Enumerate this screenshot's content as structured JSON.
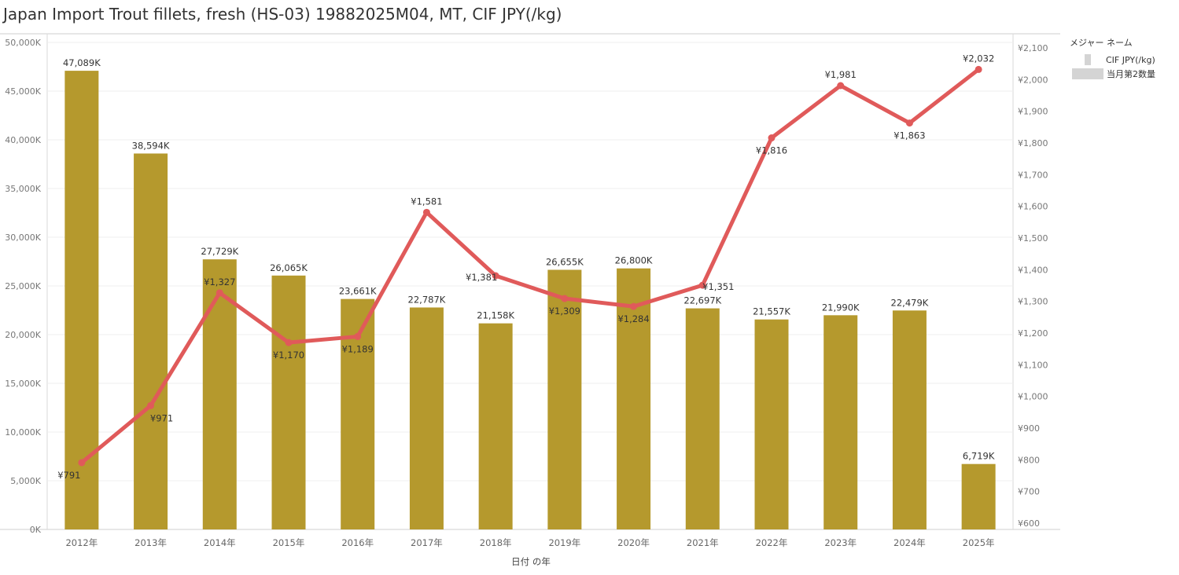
{
  "title": "Japan Import Trout fillets, fresh (HS-03) 19882025M04, MT, CIF JPY(/kg)",
  "legend": {
    "title": "メジャー ネーム",
    "items": [
      {
        "label": "CIF JPY(/kg)",
        "kind": "line"
      },
      {
        "label": "当月第2数量",
        "kind": "bar"
      }
    ]
  },
  "chart_data": {
    "type": "bar",
    "xlabel": "日付 の年",
    "categories": [
      "2012年",
      "2013年",
      "2014年",
      "2015年",
      "2016年",
      "2017年",
      "2018年",
      "2019年",
      "2020年",
      "2021年",
      "2022年",
      "2023年",
      "2024年",
      "2025年"
    ],
    "series": [
      {
        "name": "当月第2数量",
        "type": "bar",
        "axis": "left",
        "color": "#b5992d",
        "values": [
          47089,
          38594,
          27729,
          26065,
          23661,
          22787,
          21158,
          26655,
          26800,
          22697,
          21557,
          21990,
          22479,
          6719
        ],
        "labels": [
          "47,089K",
          "38,594K",
          "27,729K",
          "26,065K",
          "23,661K",
          "22,787K",
          "21,158K",
          "26,655K",
          "26,800K",
          "22,697K",
          "21,557K",
          "21,990K",
          "22,479K",
          "6,719K"
        ]
      },
      {
        "name": "CIF JPY(/kg)",
        "type": "line",
        "axis": "right",
        "color": "#e05a5a",
        "values": [
          791,
          971,
          1327,
          1170,
          1189,
          1581,
          1381,
          1309,
          1284,
          1351,
          1816,
          1981,
          1863,
          2032
        ],
        "labels": [
          "¥791",
          "¥971",
          "¥1,327",
          "¥1,170",
          "¥1,189",
          "¥1,581",
          "¥1,381",
          "¥1,309",
          "¥1,284",
          "¥1,351",
          "¥1,816",
          "¥1,981",
          "¥1,863",
          "¥2,032"
        ]
      }
    ],
    "ylim_left": [
      0,
      50000
    ],
    "yticks_left": [
      0,
      5000,
      10000,
      15000,
      20000,
      25000,
      30000,
      35000,
      40000,
      45000,
      50000
    ],
    "ytick_labels_left": [
      "0K",
      "5,000K",
      "10,000K",
      "15,000K",
      "20,000K",
      "25,000K",
      "30,000K",
      "35,000K",
      "40,000K",
      "45,000K",
      "50,000K"
    ],
    "ylim_right": [
      600,
      2100
    ],
    "yticks_right": [
      600,
      700,
      800,
      900,
      1000,
      1100,
      1200,
      1300,
      1400,
      1500,
      1600,
      1700,
      1800,
      1900,
      2000,
      2100
    ],
    "ytick_labels_right": [
      "¥600",
      "¥700",
      "¥800",
      "¥900",
      "¥1,000",
      "¥1,100",
      "¥1,200",
      "¥1,300",
      "¥1,400",
      "¥1,500",
      "¥1,600",
      "¥1,700",
      "¥1,800",
      "¥1,900",
      "¥2,000",
      "¥2,100"
    ],
    "grid": true,
    "legend_position": "top-right"
  }
}
